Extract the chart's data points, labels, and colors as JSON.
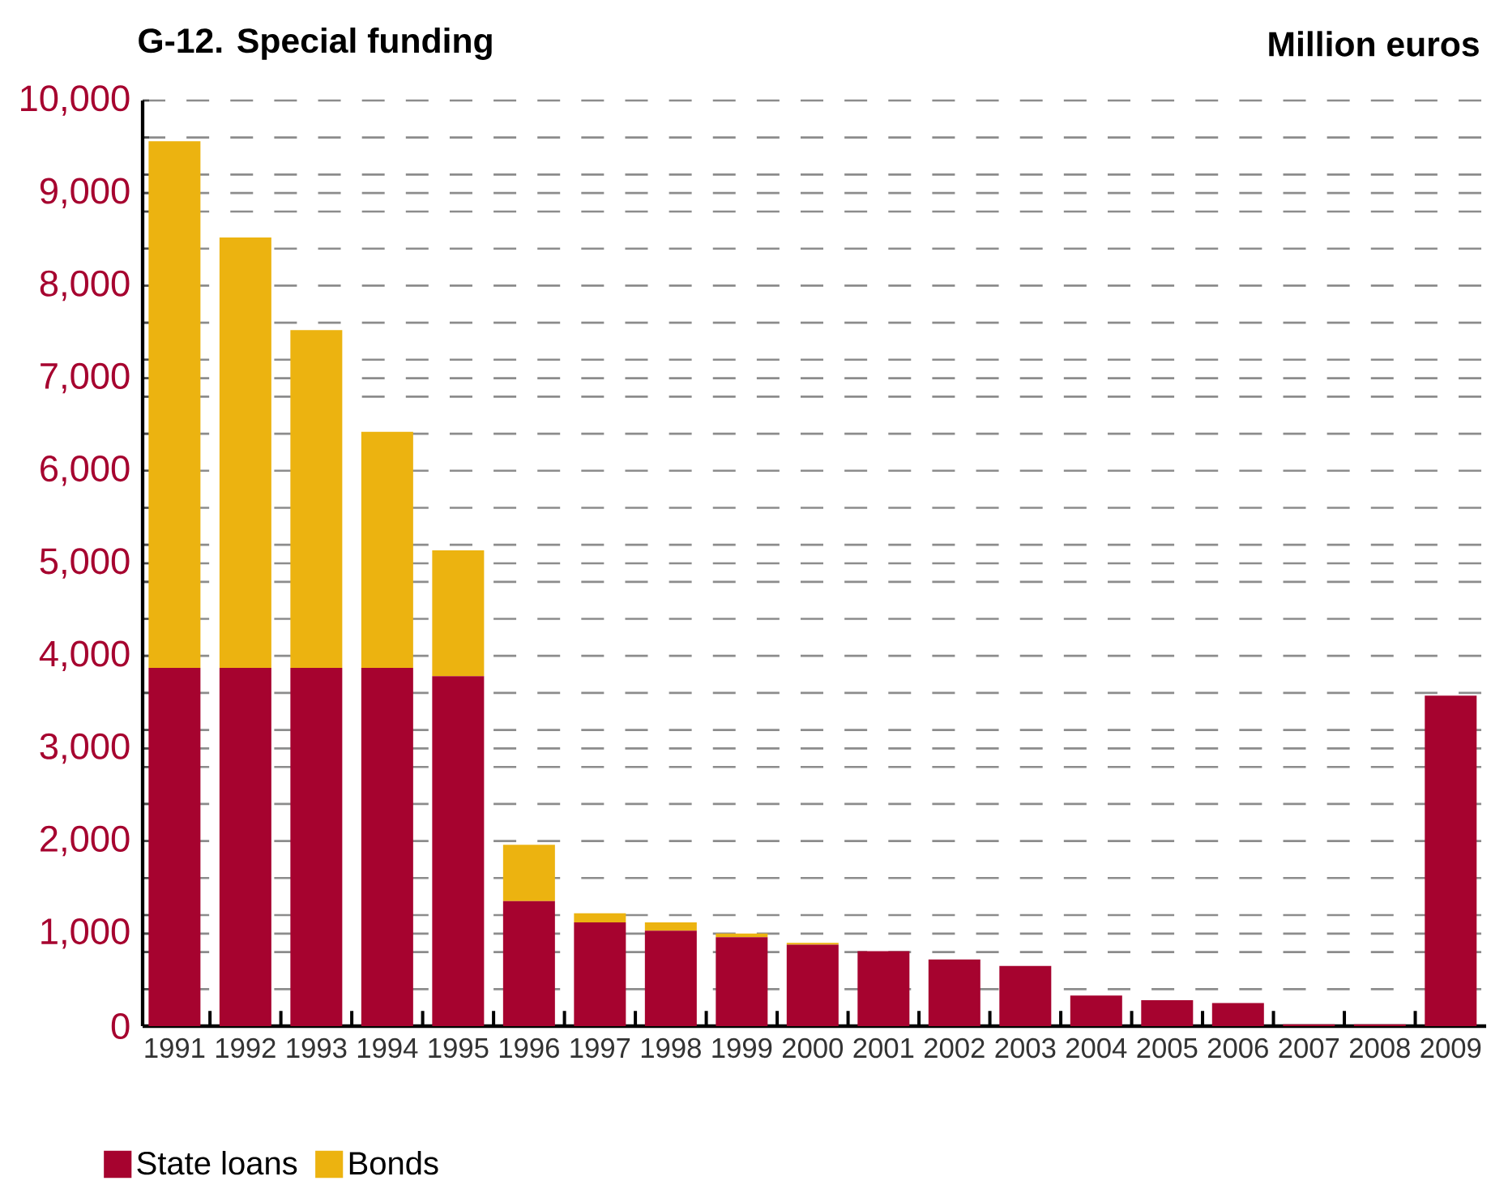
{
  "chart_data": {
    "type": "bar",
    "stacked": true,
    "title": "G-12. Special funding",
    "ylabel": "Million euros",
    "categories": [
      "1991",
      "1992",
      "1993",
      "1994",
      "1995",
      "1996",
      "1997",
      "1998",
      "1999",
      "2000",
      "2001",
      "2002",
      "2003",
      "2004",
      "2005",
      "2006",
      "2007",
      "2008",
      "2009"
    ],
    "series": [
      {
        "name": "State loans",
        "color": "#a6032f",
        "values": [
          3870,
          3870,
          3870,
          3870,
          3780,
          1350,
          1120,
          1030,
          960,
          880,
          810,
          720,
          650,
          330,
          280,
          250,
          20,
          20,
          3570
        ]
      },
      {
        "name": "Bonds",
        "color": "#ecb310",
        "values": [
          5690,
          4650,
          3650,
          2550,
          1360,
          610,
          100,
          90,
          40,
          20,
          0,
          0,
          0,
          0,
          0,
          0,
          0,
          0,
          0
        ]
      }
    ],
    "ylim": [
      0,
      10000
    ],
    "yticks": [
      {
        "value": 0,
        "label": "0"
      },
      {
        "value": 400,
        "label": null
      },
      {
        "value": 800,
        "label": null
      },
      {
        "value": 1000,
        "label": "1,000"
      },
      {
        "value": 1200,
        "label": null
      },
      {
        "value": 1600,
        "label": null
      },
      {
        "value": 2000,
        "label": "2,000"
      },
      {
        "value": 2400,
        "label": null
      },
      {
        "value": 2800,
        "label": null
      },
      {
        "value": 3000,
        "label": "3,000"
      },
      {
        "value": 3200,
        "label": null
      },
      {
        "value": 3600,
        "label": null
      },
      {
        "value": 4000,
        "label": "4,000"
      },
      {
        "value": 4400,
        "label": null
      },
      {
        "value": 4800,
        "label": null
      },
      {
        "value": 5000,
        "label": "5,000"
      },
      {
        "value": 5200,
        "label": null
      },
      {
        "value": 5600,
        "label": null
      },
      {
        "value": 6000,
        "label": "6,000"
      },
      {
        "value": 6400,
        "label": null
      },
      {
        "value": 6800,
        "label": null
      },
      {
        "value": 7000,
        "label": "7,000"
      },
      {
        "value": 7200,
        "label": null
      },
      {
        "value": 7600,
        "label": null
      },
      {
        "value": 8000,
        "label": "8,000"
      },
      {
        "value": 8400,
        "label": null
      },
      {
        "value": 8800,
        "label": null
      },
      {
        "value": 9000,
        "label": "9,000"
      },
      {
        "value": 9200,
        "label": null
      },
      {
        "value": 9600,
        "label": null
      },
      {
        "value": 10000,
        "label": "10,000"
      }
    ],
    "grid": "y",
    "legend": "bottom left"
  }
}
